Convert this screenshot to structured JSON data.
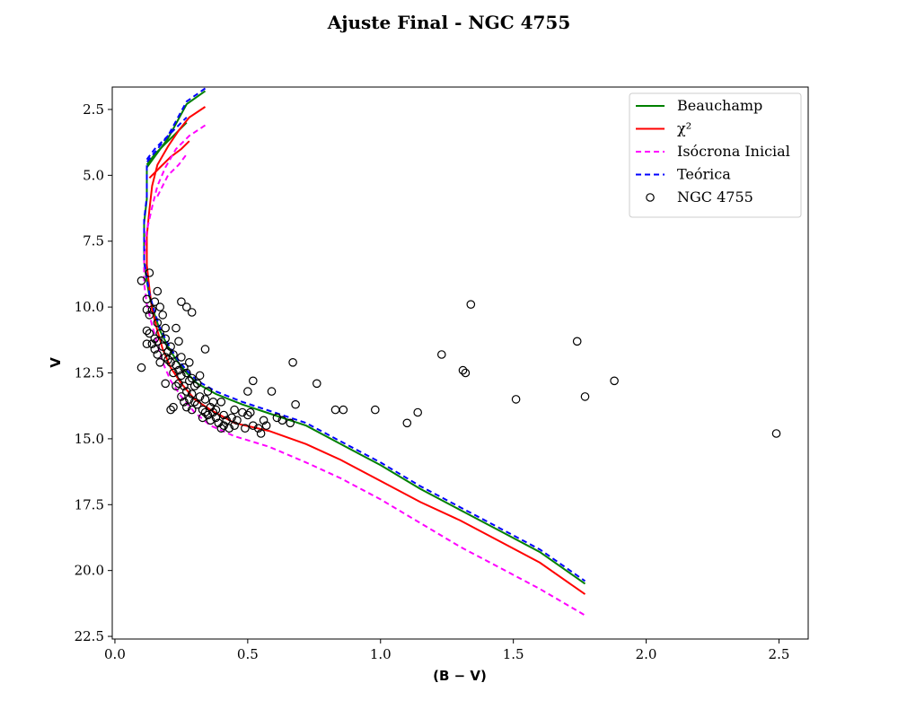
{
  "chart_data": {
    "type": "scatter",
    "title": "Ajuste Final - NGC 4755",
    "xlabel": "(B − V)",
    "ylabel": "V",
    "xlim": [
      -0.01,
      2.61
    ],
    "ylim": [
      22.6,
      1.65
    ],
    "y_inverted": true,
    "x_ticks": [
      "0.0",
      "0.5",
      "1.0",
      "1.5",
      "2.0",
      "2.5"
    ],
    "x_tick_values": [
      0.0,
      0.5,
      1.0,
      1.5,
      2.0,
      2.5
    ],
    "y_ticks": [
      "2.5",
      "5.0",
      "7.5",
      "10.0",
      "12.5",
      "15.0",
      "17.5",
      "20.0",
      "22.5"
    ],
    "y_tick_values": [
      2.5,
      5.0,
      7.5,
      10.0,
      12.5,
      15.0,
      17.5,
      20.0,
      22.5
    ],
    "grid": false,
    "legend_position": "top-right",
    "legend": [
      {
        "label": "Beauchamp",
        "color": "#008000",
        "style": "solid"
      },
      {
        "label": "χ²",
        "color": "#ff0000",
        "style": "solid"
      },
      {
        "label": "Isócrona Inicial",
        "color": "#ff00ff",
        "style": "dashed"
      },
      {
        "label": "Teórica",
        "color": "#0000ff",
        "style": "dashed"
      },
      {
        "label": "NGC 4755",
        "color": "#000000",
        "style": "marker"
      }
    ],
    "series": [
      {
        "name": "Beauchamp",
        "color": "#008000",
        "dash": false,
        "x": [
          0.34,
          0.27,
          0.2,
          0.12,
          0.12,
          0.12,
          0.11,
          0.11,
          0.11,
          0.12,
          0.13,
          0.15,
          0.17,
          0.2,
          0.23,
          0.27,
          0.31,
          0.38,
          0.48,
          0.6,
          0.72,
          0.85,
          1.0,
          1.15,
          1.3,
          1.45,
          1.6,
          1.77
        ],
        "y": [
          1.8,
          2.3,
          3.6,
          4.7,
          5.3,
          5.9,
          6.8,
          7.6,
          8.3,
          9.0,
          9.6,
          10.3,
          10.9,
          11.5,
          12.0,
          12.5,
          12.9,
          13.3,
          13.7,
          14.1,
          14.5,
          15.2,
          16.0,
          16.9,
          17.7,
          18.5,
          19.3,
          20.5
        ],
        "branch": {
          "x": [
            0.12,
            0.15,
            0.19,
            0.23,
            0.27
          ],
          "y": [
            4.6,
            4.2,
            3.8,
            3.4,
            3.0
          ]
        }
      },
      {
        "name": "χ²",
        "color": "#ff0000",
        "dash": false,
        "x": [
          0.34,
          0.28,
          0.24,
          0.2,
          0.16,
          0.14,
          0.13,
          0.12,
          0.12,
          0.13,
          0.14,
          0.16,
          0.18,
          0.21,
          0.25,
          0.3,
          0.36,
          0.45,
          0.58,
          0.72,
          0.85,
          1.0,
          1.15,
          1.3,
          1.45,
          1.6,
          1.77
        ],
        "y": [
          2.4,
          2.8,
          3.3,
          3.9,
          4.6,
          5.4,
          6.3,
          7.3,
          8.4,
          9.3,
          10.1,
          10.9,
          11.6,
          12.3,
          12.9,
          13.5,
          13.9,
          14.4,
          14.7,
          15.2,
          15.8,
          16.6,
          17.4,
          18.1,
          18.9,
          19.7,
          20.9
        ],
        "branch": {
          "x": [
            0.13,
            0.17,
            0.21,
            0.25,
            0.28
          ],
          "y": [
            5.1,
            4.7,
            4.3,
            4.0,
            3.7
          ]
        }
      },
      {
        "name": "Isócrona Inicial",
        "color": "#ff00ff",
        "dash": true,
        "x": [
          0.34,
          0.28,
          0.23,
          0.19,
          0.16,
          0.14,
          0.12,
          0.11,
          0.11,
          0.12,
          0.14,
          0.16,
          0.18,
          0.21,
          0.25,
          0.3,
          0.36,
          0.45,
          0.58,
          0.72,
          0.85,
          1.0,
          1.15,
          1.3,
          1.45,
          1.6,
          1.77
        ],
        "y": [
          3.1,
          3.5,
          4.0,
          4.7,
          5.4,
          6.2,
          7.1,
          8.1,
          9.1,
          9.9,
          10.7,
          11.4,
          12.1,
          12.8,
          13.4,
          14.0,
          14.5,
          14.9,
          15.3,
          15.9,
          16.5,
          17.3,
          18.2,
          19.1,
          19.9,
          20.7,
          21.7
        ],
        "branch": {
          "x": [
            0.16,
            0.2,
            0.24,
            0.27
          ],
          "y": [
            5.8,
            5.0,
            4.6,
            4.2
          ]
        }
      },
      {
        "name": "Teórica",
        "color": "#0000ff",
        "dash": true,
        "x": [
          0.34,
          0.27,
          0.2,
          0.12,
          0.12,
          0.12,
          0.11,
          0.11,
          0.11,
          0.12,
          0.13,
          0.15,
          0.17,
          0.2,
          0.23,
          0.27,
          0.31,
          0.38,
          0.48,
          0.6,
          0.72,
          0.85,
          1.0,
          1.15,
          1.3,
          1.45,
          1.6,
          1.77
        ],
        "y": [
          1.7,
          2.2,
          3.5,
          4.5,
          5.2,
          5.8,
          6.7,
          7.5,
          8.2,
          8.9,
          9.5,
          10.2,
          10.8,
          11.4,
          11.9,
          12.4,
          12.8,
          13.2,
          13.6,
          14.0,
          14.4,
          15.1,
          15.9,
          16.8,
          17.6,
          18.4,
          19.2,
          20.4
        ],
        "branch": {
          "x": [
            0.12,
            0.15,
            0.19,
            0.23,
            0.27
          ],
          "y": [
            4.4,
            4.0,
            3.6,
            3.2,
            2.8
          ]
        }
      }
    ],
    "points": {
      "name": "NGC 4755",
      "x": [
        0.1,
        0.1,
        0.12,
        0.12,
        0.12,
        0.13,
        0.13,
        0.14,
        0.14,
        0.15,
        0.15,
        0.15,
        0.16,
        0.16,
        0.16,
        0.16,
        0.17,
        0.17,
        0.17,
        0.18,
        0.18,
        0.19,
        0.19,
        0.19,
        0.2,
        0.2,
        0.21,
        0.21,
        0.22,
        0.22,
        0.23,
        0.23,
        0.23,
        0.24,
        0.24,
        0.24,
        0.25,
        0.25,
        0.25,
        0.26,
        0.26,
        0.26,
        0.27,
        0.27,
        0.27,
        0.28,
        0.28,
        0.28,
        0.29,
        0.29,
        0.29,
        0.3,
        0.3,
        0.31,
        0.31,
        0.32,
        0.32,
        0.33,
        0.33,
        0.34,
        0.34,
        0.35,
        0.35,
        0.36,
        0.36,
        0.37,
        0.37,
        0.38,
        0.38,
        0.39,
        0.4,
        0.4,
        0.41,
        0.41,
        0.42,
        0.43,
        0.44,
        0.45,
        0.45,
        0.46,
        0.48,
        0.49,
        0.5,
        0.51,
        0.52,
        0.54,
        0.55,
        0.56,
        0.57,
        0.25,
        0.27,
        0.29,
        0.34,
        0.21,
        0.22,
        0.19,
        0.12,
        0.13,
        0.5,
        0.52,
        0.59,
        0.61,
        0.63,
        0.66,
        0.67,
        0.68,
        0.76,
        0.83,
        0.86,
        0.98,
        1.1,
        1.14,
        1.23,
        1.31,
        1.32,
        1.34,
        1.51,
        1.74,
        1.77,
        1.88,
        2.49
      ],
      "y": [
        12.3,
        9.0,
        10.1,
        10.9,
        11.4,
        8.7,
        11.0,
        10.1,
        11.4,
        9.8,
        11.2,
        11.6,
        9.4,
        10.6,
        11.3,
        11.8,
        10.0,
        11.0,
        12.1,
        10.3,
        11.5,
        11.2,
        11.9,
        10.8,
        11.7,
        12.0,
        11.5,
        12.1,
        11.8,
        12.5,
        10.8,
        12.2,
        13.0,
        11.3,
        12.4,
        12.9,
        11.9,
        12.6,
        13.4,
        12.3,
        13.0,
        13.6,
        12.5,
        13.2,
        13.8,
        12.1,
        12.8,
        13.5,
        12.7,
        13.3,
        13.9,
        13.0,
        13.6,
        12.9,
        13.7,
        12.6,
        13.4,
        13.9,
        14.2,
        13.5,
        14.0,
        13.2,
        14.1,
        13.8,
        14.3,
        13.6,
        14.0,
        13.9,
        14.2,
        14.4,
        13.6,
        14.6,
        14.1,
        14.5,
        14.3,
        14.6,
        14.2,
        13.9,
        14.5,
        14.3,
        14.0,
        14.6,
        14.1,
        14.0,
        14.5,
        14.6,
        14.8,
        14.3,
        14.5,
        9.8,
        10.0,
        10.2,
        11.6,
        13.9,
        13.8,
        12.9,
        9.7,
        10.3,
        13.2,
        12.8,
        13.2,
        14.2,
        14.3,
        14.4,
        12.1,
        13.7,
        12.9,
        13.9,
        13.9,
        13.9,
        14.4,
        14.0,
        11.8,
        12.4,
        12.5,
        9.9,
        13.5,
        11.3,
        13.4,
        12.8,
        14.8
      ]
    }
  }
}
